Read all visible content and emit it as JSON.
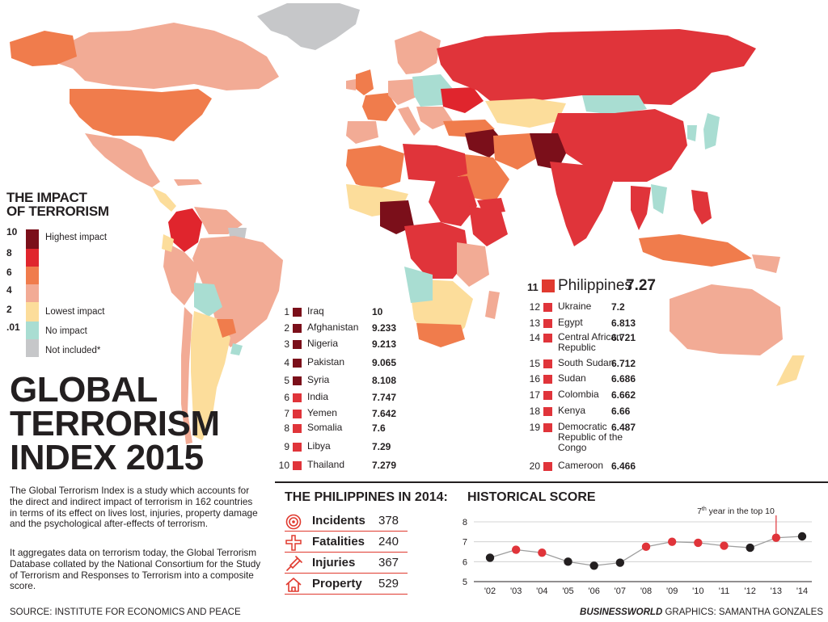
{
  "legend": {
    "title_line1": "THE IMPACT",
    "title_line2": "OF TERRORISM",
    "ticks": [
      "10",
      "8",
      "6",
      "4",
      "2",
      ".01"
    ],
    "labels": {
      "highest": "Highest impact",
      "lowest": "Lowest impact",
      "none": "No impact",
      "not_included": "Not included*"
    },
    "colors": {
      "c10": "#7b0f1a",
      "c8": "#e0252d",
      "c6": "#f07c4c",
      "c4": "#f2ab95",
      "c2": "#fcdd9b",
      "c0": "#a9ddd2",
      "na": "#c6c7c9"
    }
  },
  "title": {
    "line1": "GLOBAL",
    "line2": "TERRORISM",
    "line3": "INDEX 2015"
  },
  "description": {
    "p1": "The Global Terrorism Index is a study which accounts for the direct and indirect impact of terrorism in 162 countries in terms of its effect on lives lost, injuries, property damage and the psychological after-effects of terrorism.",
    "p2": "It aggregates data on terrorism today, the Global Terrorism Database collated by the National Consortium for the Study of Terrorism and Responses to Terrorism into a composite score."
  },
  "source": "SOURCE: INSTITUTE FOR ECONOMICS AND PEACE",
  "credit": {
    "brand": "BUSINESSWORLD",
    "rest": " GRAPHICS: SAMANTHA GONZALES"
  },
  "rankings_left": [
    {
      "rank": "1",
      "country": "Iraq",
      "score": "10",
      "color": "#7b0f1a"
    },
    {
      "rank": "2",
      "country": "Afghanistan",
      "score": "9.233",
      "color": "#7b0f1a"
    },
    {
      "rank": "3",
      "country": "Nigeria",
      "score": "9.213",
      "color": "#7b0f1a"
    },
    {
      "rank": "4",
      "country": "Pakistan",
      "score": "9.065",
      "color": "#7b0f1a"
    },
    {
      "rank": "5",
      "country": "Syria",
      "score": "8.108",
      "color": "#7b0f1a"
    },
    {
      "rank": "6",
      "country": "India",
      "score": "7.747",
      "color": "#e0343a"
    },
    {
      "rank": "7",
      "country": "Yemen",
      "score": "7.642",
      "color": "#e0343a"
    },
    {
      "rank": "8",
      "country": "Somalia",
      "score": "7.6",
      "color": "#e0343a"
    },
    {
      "rank": "9",
      "country": "Libya",
      "score": "7.29",
      "color": "#e0343a"
    },
    {
      "rank": "10",
      "country": "Thailand",
      "score": "7.279",
      "color": "#e0343a"
    }
  ],
  "rank_11": {
    "rank": "11",
    "country": "Philippines",
    "score": "7.27"
  },
  "rankings_right": [
    {
      "rank": "12",
      "country": "Ukraine",
      "score": "7.2"
    },
    {
      "rank": "13",
      "country": "Egypt",
      "score": "6.813"
    },
    {
      "rank": "14",
      "country": "Central African Republic",
      "score": "6.721"
    },
    {
      "rank": "15",
      "country": "South Sudan",
      "score": "6.712"
    },
    {
      "rank": "16",
      "country": "Sudan",
      "score": "6.686"
    },
    {
      "rank": "17",
      "country": "Colombia",
      "score": "6.662"
    },
    {
      "rank": "18",
      "country": "Kenya",
      "score": "6.66"
    },
    {
      "rank": "19",
      "country": "Democratic Republic of the Congo",
      "score": "6.487"
    },
    {
      "rank": "20",
      "country": "Cameroon",
      "score": "6.466"
    }
  ],
  "philippines_2014": {
    "title": "THE PHILIPPINES IN 2014:",
    "items": [
      {
        "label": "Incidents",
        "value": "378",
        "icon": "target-icon"
      },
      {
        "label": "Fatalities",
        "value": "240",
        "icon": "cross-icon"
      },
      {
        "label": "Injuries",
        "value": "367",
        "icon": "syringe-icon"
      },
      {
        "label": "Property",
        "value": "529",
        "icon": "house-icon"
      }
    ]
  },
  "chart_data": {
    "type": "line",
    "title": "HISTORICAL SCORE",
    "x": [
      "'02",
      "'03",
      "'04",
      "'05",
      "'06",
      "'07",
      "'08",
      "'09",
      "'10",
      "'11",
      "'12",
      "'13",
      "'14"
    ],
    "series": [
      {
        "values": [
          6.2,
          6.6,
          6.45,
          6.0,
          5.8,
          5.95,
          6.75,
          7.0,
          6.95,
          6.8,
          6.7,
          7.2,
          7.27
        ]
      }
    ],
    "point_colors": [
      "#231f20",
      "#e0343a",
      "#e0343a",
      "#231f20",
      "#231f20",
      "#231f20",
      "#e0343a",
      "#e0343a",
      "#e0343a",
      "#e0343a",
      "#231f20",
      "#e0343a",
      "#231f20"
    ],
    "ylim": [
      5,
      8
    ],
    "yticks": [
      "5",
      "6",
      "7",
      "8"
    ],
    "grid": true,
    "annotation": {
      "text_pre": "7",
      "text_sup": "th",
      "text_post": " year in the top 10"
    }
  }
}
